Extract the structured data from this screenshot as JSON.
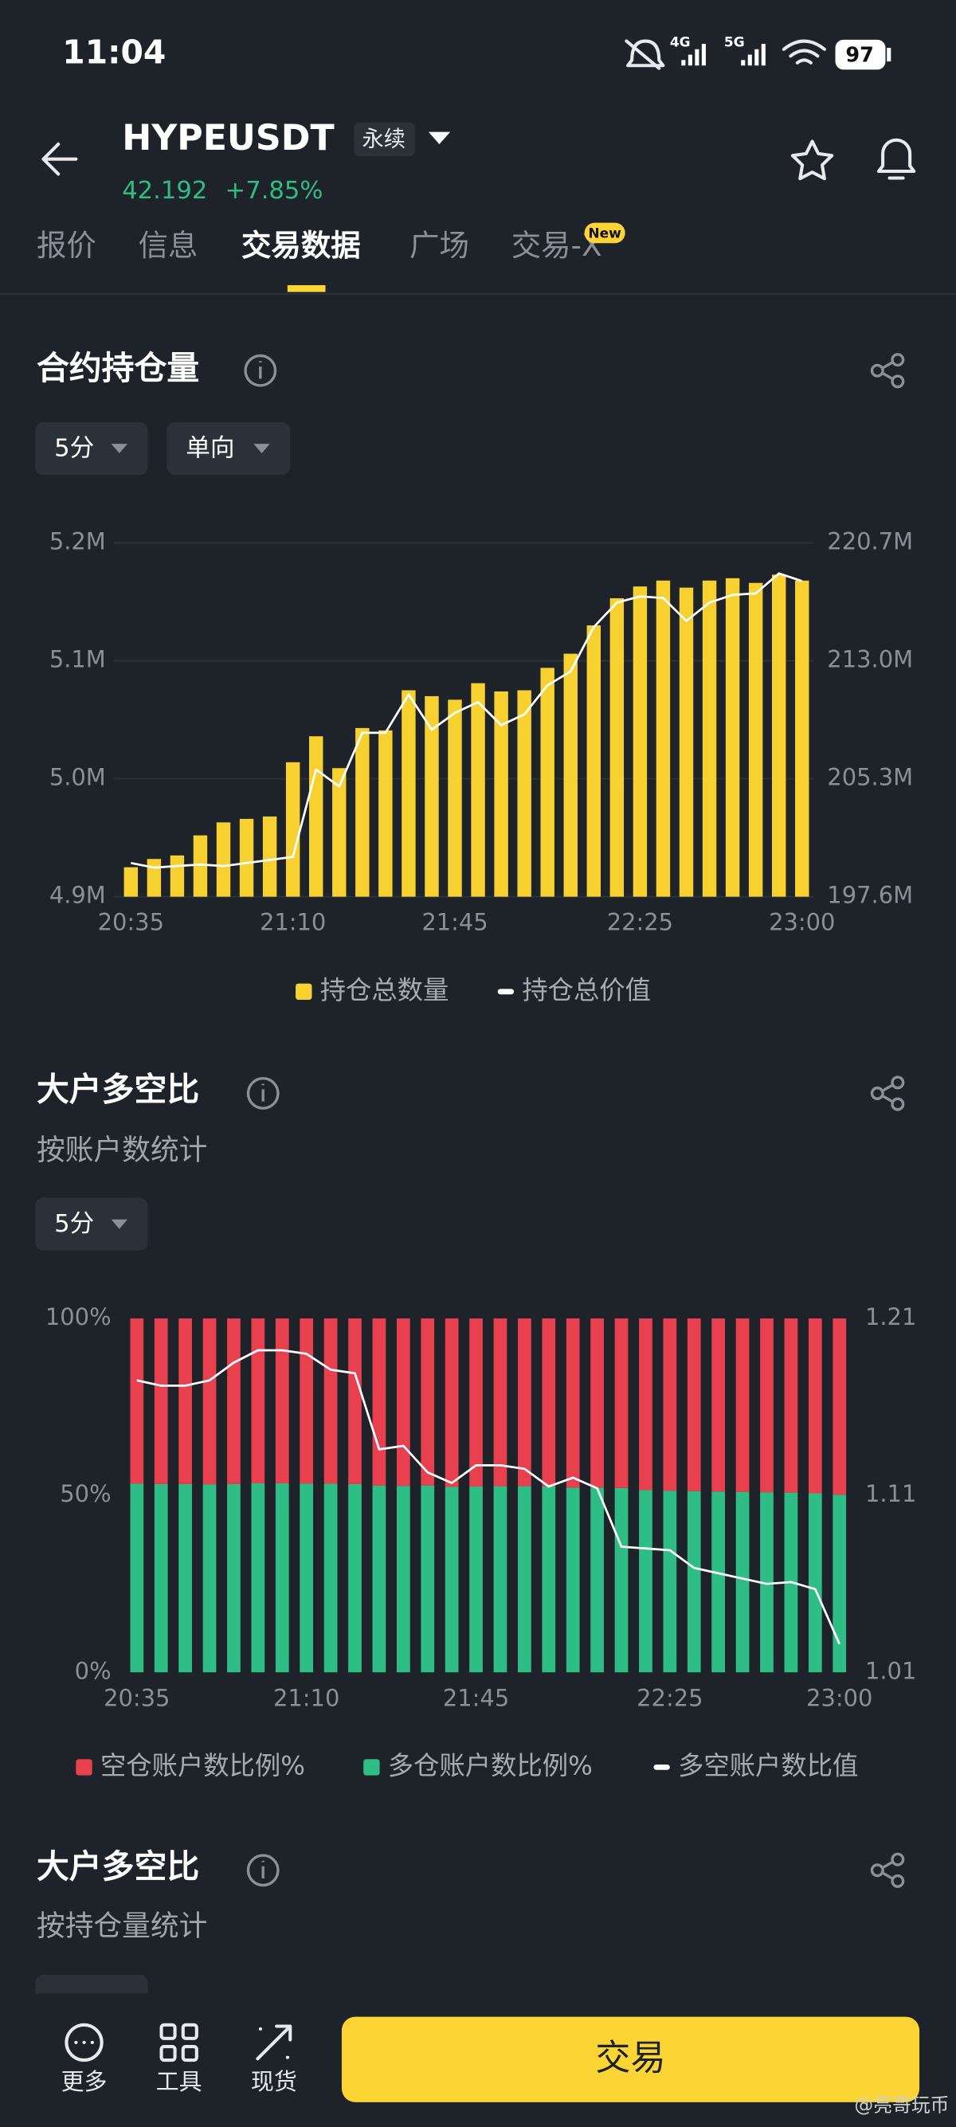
{
  "status_bar": {
    "time": "11:04",
    "network": [
      "4G",
      "5G"
    ],
    "battery": "97"
  },
  "header": {
    "symbol": "HYPEUSDT",
    "contract_type": "永续",
    "price": "42.192",
    "change": "+7.85%"
  },
  "tabs": [
    "报价",
    "信息",
    "交易数据",
    "广场",
    "交易-X"
  ],
  "tab_badge": "New",
  "sections": [
    {
      "title": "合约持仓量",
      "selectors": [
        "5分",
        "单向"
      ]
    },
    {
      "title": "大户多空比",
      "subtitle": "按账户数统计",
      "selectors": [
        "5分"
      ]
    },
    {
      "title": "大户多空比",
      "subtitle": "按持仓量统计"
    }
  ],
  "chart_data": [
    {
      "type": "bar",
      "categories": [
        "20:35",
        null,
        null,
        null,
        null,
        null,
        null,
        "21:10",
        null,
        null,
        null,
        null,
        null,
        null,
        "21:45",
        null,
        null,
        null,
        null,
        null,
        null,
        null,
        "22:25",
        null,
        null,
        null,
        null,
        null,
        null,
        "23:00"
      ],
      "series": [
        {
          "name": "持仓总数量",
          "color": "#f6d130",
          "values": [
            4925000,
            4932000,
            4935000,
            4952000,
            4963000,
            4966000,
            4968000,
            5014000,
            5036000,
            5009000,
            5043000,
            5041000,
            5075000,
            5070000,
            5067000,
            5081000,
            5074000,
            5075000,
            5094000,
            5106000,
            5130000,
            5153000,
            5163000,
            5168000,
            5162000,
            5168000,
            5170000,
            5166000,
            5173000,
            5168000
          ]
        },
        {
          "name": "持仓总价值",
          "color": "#ffffff",
          "type": "line",
          "axis": "y2",
          "values": [
            199800000,
            199500000,
            199600000,
            199700000,
            199600000,
            199800000,
            200000000,
            200200000,
            205900000,
            204800000,
            208300000,
            208300000,
            210800000,
            208500000,
            209600000,
            210300000,
            208800000,
            209500000,
            211400000,
            212300000,
            215200000,
            216800000,
            217200000,
            217100000,
            215600000,
            216800000,
            217300000,
            217400000,
            218700000,
            218200000
          ]
        }
      ],
      "ylim": [
        4900000,
        5200000
      ],
      "yticks": [
        {
          "value": 4900000,
          "label": "4.9M"
        },
        {
          "value": 5000000,
          "label": "5.0M"
        },
        {
          "value": 5100000,
          "label": "5.1M"
        },
        {
          "value": 5200000,
          "label": "5.2M"
        }
      ],
      "y2lim": [
        197600000,
        220700000
      ],
      "y2ticks": [
        {
          "value": 197600000,
          "label": "197.6M"
        },
        {
          "value": 205300000,
          "label": "205.3M"
        },
        {
          "value": 213000000,
          "label": "213.0M"
        },
        {
          "value": 220700000,
          "label": "220.7M"
        }
      ],
      "grid": true
    },
    {
      "type": "bar",
      "stacked": true,
      "categories": [
        "20:35",
        null,
        null,
        null,
        null,
        null,
        null,
        "21:10",
        null,
        null,
        null,
        null,
        null,
        null,
        "21:45",
        null,
        null,
        null,
        null,
        null,
        null,
        null,
        "22:25",
        null,
        null,
        null,
        null,
        null,
        null,
        "23:00"
      ],
      "series": [
        {
          "name": "空仓账户数比例%",
          "color": "#e8404f",
          "values": [
            46.7,
            46.8,
            46.8,
            46.9,
            46.8,
            46.6,
            46.6,
            46.7,
            46.7,
            46.8,
            47.2,
            47.3,
            47.2,
            47.6,
            47.5,
            47.4,
            47.4,
            47.5,
            47.8,
            47.8,
            47.9,
            48.5,
            48.7,
            48.8,
            48.9,
            49.0,
            49.1,
            49.2,
            49.4,
            49.8
          ]
        },
        {
          "name": "多仓账户数比例%",
          "color": "#2ebd85",
          "values": [
            53.3,
            53.2,
            53.2,
            53.1,
            53.2,
            53.4,
            53.4,
            53.3,
            53.3,
            53.2,
            52.8,
            52.7,
            52.8,
            52.4,
            52.5,
            52.6,
            52.6,
            52.5,
            52.2,
            52.2,
            52.1,
            51.5,
            51.3,
            51.2,
            51.1,
            51.0,
            50.9,
            50.8,
            50.6,
            50.2
          ]
        },
        {
          "name": "多空账户数比值",
          "color": "#ffffff",
          "type": "line",
          "axis": "y2",
          "values": [
            1.175,
            1.172,
            1.172,
            1.175,
            1.185,
            1.192,
            1.192,
            1.19,
            1.181,
            1.179,
            1.136,
            1.138,
            1.123,
            1.117,
            1.127,
            1.127,
            1.125,
            1.115,
            1.12,
            1.114,
            1.081,
            1.08,
            1.079,
            1.069,
            1.066,
            1.063,
            1.06,
            1.061,
            1.057,
            1.026
          ]
        }
      ],
      "ylim": [
        0,
        100
      ],
      "yticks": [
        {
          "value": 0,
          "label": "0%"
        },
        {
          "value": 50,
          "label": "50%"
        },
        {
          "value": 100,
          "label": "100%"
        }
      ],
      "y2lim": [
        1.01,
        1.21
      ],
      "y2ticks": [
        1.01,
        1.11,
        1.21
      ],
      "grid": false
    }
  ],
  "bottom_nav": [
    "更多",
    "工具",
    "现货"
  ],
  "action_button": "交易",
  "watermark": "@亮哥玩币"
}
